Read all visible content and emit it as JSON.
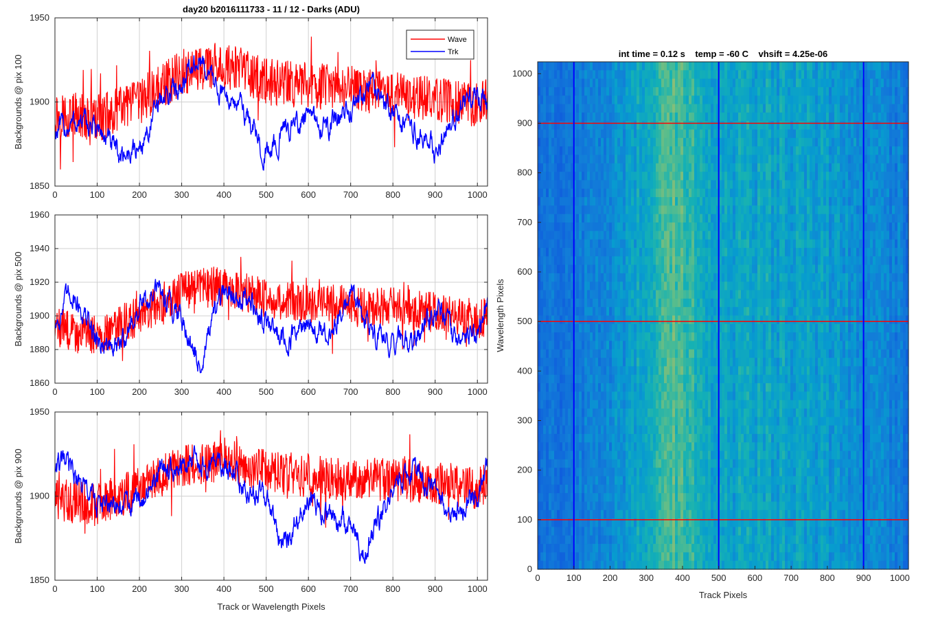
{
  "figure_title": "day20 b2016111733 - 11 / 12 - Darks (ADU)",
  "colors": {
    "wave": "#ff0000",
    "trk": "#0000ff",
    "grid": "#d0d0d0",
    "axis": "#262626"
  },
  "chart_data": [
    {
      "type": "line",
      "title": "day20 b2016111733 - 11 / 12 - Darks (ADU)",
      "xlabel": "",
      "ylabel": "Backgrounds @ pix 100",
      "xlim": [
        0,
        1024
      ],
      "ylim": [
        1850,
        1950
      ],
      "xticks": [
        0,
        100,
        200,
        300,
        400,
        500,
        600,
        700,
        800,
        900,
        1000
      ],
      "yticks": [
        1850,
        1900,
        1950
      ],
      "grid": true,
      "legend": {
        "position": "top-right",
        "entries": [
          "Wave",
          "Trk"
        ]
      },
      "series": [
        {
          "name": "Wave",
          "color": "#ff0000",
          "x": [
            0,
            100,
            200,
            300,
            400,
            500,
            600,
            700,
            800,
            900,
            1000,
            1024
          ],
          "mean": [
            1893,
            1890,
            1900,
            1918,
            1922,
            1912,
            1910,
            1908,
            1905,
            1902,
            1898,
            1900
          ],
          "noise_amplitude": 14
        },
        {
          "name": "Trk",
          "color": "#0000ff",
          "x": [
            0,
            50,
            100,
            150,
            200,
            250,
            300,
            340,
            400,
            450,
            500,
            550,
            600,
            650,
            700,
            750,
            800,
            850,
            900,
            950,
            1000,
            1024
          ],
          "mean": [
            1882,
            1888,
            1885,
            1868,
            1872,
            1900,
            1912,
            1925,
            1905,
            1895,
            1868,
            1885,
            1890,
            1885,
            1895,
            1912,
            1895,
            1882,
            1872,
            1895,
            1905,
            1895
          ],
          "noise_amplitude": 5
        }
      ]
    },
    {
      "type": "line",
      "title": "",
      "xlabel": "",
      "ylabel": "Backgrounds @ pix 500",
      "xlim": [
        0,
        1024
      ],
      "ylim": [
        1860,
        1960
      ],
      "xticks": [
        0,
        100,
        200,
        300,
        400,
        500,
        600,
        700,
        800,
        900,
        1000
      ],
      "yticks": [
        1860,
        1880,
        1900,
        1920,
        1940,
        1960
      ],
      "grid": true,
      "series": [
        {
          "name": "Wave",
          "color": "#ff0000",
          "x": [
            0,
            100,
            200,
            300,
            400,
            500,
            600,
            700,
            800,
            900,
            1000,
            1024
          ],
          "mean": [
            1893,
            1888,
            1900,
            1915,
            1918,
            1910,
            1908,
            1906,
            1905,
            1902,
            1898,
            1900
          ],
          "noise_amplitude": 12
        },
        {
          "name": "Trk",
          "color": "#0000ff",
          "x": [
            0,
            40,
            100,
            150,
            200,
            250,
            300,
            340,
            400,
            450,
            500,
            550,
            600,
            650,
            700,
            750,
            800,
            850,
            900,
            950,
            1000,
            1024
          ],
          "mean": [
            1895,
            1915,
            1885,
            1880,
            1905,
            1915,
            1900,
            1870,
            1915,
            1912,
            1895,
            1885,
            1895,
            1885,
            1915,
            1890,
            1885,
            1885,
            1905,
            1885,
            1890,
            1905
          ],
          "noise_amplitude": 5
        }
      ]
    },
    {
      "type": "line",
      "title": "",
      "xlabel": "Track or Wavelength Pixels",
      "ylabel": "Backgrounds @ pix 900",
      "xlim": [
        0,
        1024
      ],
      "ylim": [
        1850,
        1950
      ],
      "xticks": [
        0,
        100,
        200,
        300,
        400,
        500,
        600,
        700,
        800,
        900,
        1000
      ],
      "yticks": [
        1850,
        1900,
        1950
      ],
      "grid": true,
      "series": [
        {
          "name": "Wave",
          "color": "#ff0000",
          "x": [
            0,
            100,
            200,
            300,
            400,
            500,
            600,
            700,
            800,
            900,
            1000,
            1024
          ],
          "mean": [
            1898,
            1895,
            1905,
            1918,
            1922,
            1915,
            1912,
            1910,
            1910,
            1908,
            1905,
            1908
          ],
          "noise_amplitude": 13
        },
        {
          "name": "Trk",
          "color": "#0000ff",
          "x": [
            0,
            30,
            100,
            150,
            200,
            250,
            300,
            350,
            400,
            450,
            500,
            540,
            600,
            650,
            700,
            730,
            800,
            850,
            900,
            950,
            1000,
            1024
          ],
          "mean": [
            1918,
            1918,
            1895,
            1892,
            1898,
            1915,
            1918,
            1920,
            1918,
            1905,
            1898,
            1870,
            1900,
            1888,
            1885,
            1865,
            1905,
            1915,
            1905,
            1890,
            1900,
            1920
          ],
          "noise_amplitude": 5
        }
      ]
    },
    {
      "type": "heatmap",
      "title": "int time = 0.12 s    temp = -60 C    vhsift = 4.25e-06",
      "xlabel": "Track Pixels",
      "ylabel": "Wavelength Pixels",
      "xlim": [
        0,
        1024
      ],
      "ylim": [
        0,
        1024
      ],
      "xticks": [
        0,
        100,
        200,
        300,
        400,
        500,
        600,
        700,
        800,
        900,
        1000
      ],
      "yticks": [
        0,
        100,
        200,
        300,
        400,
        500,
        600,
        700,
        800,
        900,
        1000
      ],
      "colormap": "parula",
      "column_profile": {
        "x": [
          0,
          60,
          150,
          250,
          300,
          350,
          400,
          450,
          500,
          600,
          700,
          800,
          900,
          1000,
          1024
        ],
        "level": [
          0.33,
          0.35,
          0.42,
          0.48,
          0.58,
          0.66,
          0.68,
          0.58,
          0.52,
          0.54,
          0.52,
          0.5,
          0.45,
          0.38,
          0.35
        ]
      },
      "marker_rows": {
        "color": "#ff0000",
        "values": [
          100,
          500,
          900
        ]
      },
      "marker_columns": {
        "color": "#0000ff",
        "values": [
          100,
          500,
          900
        ]
      }
    }
  ]
}
